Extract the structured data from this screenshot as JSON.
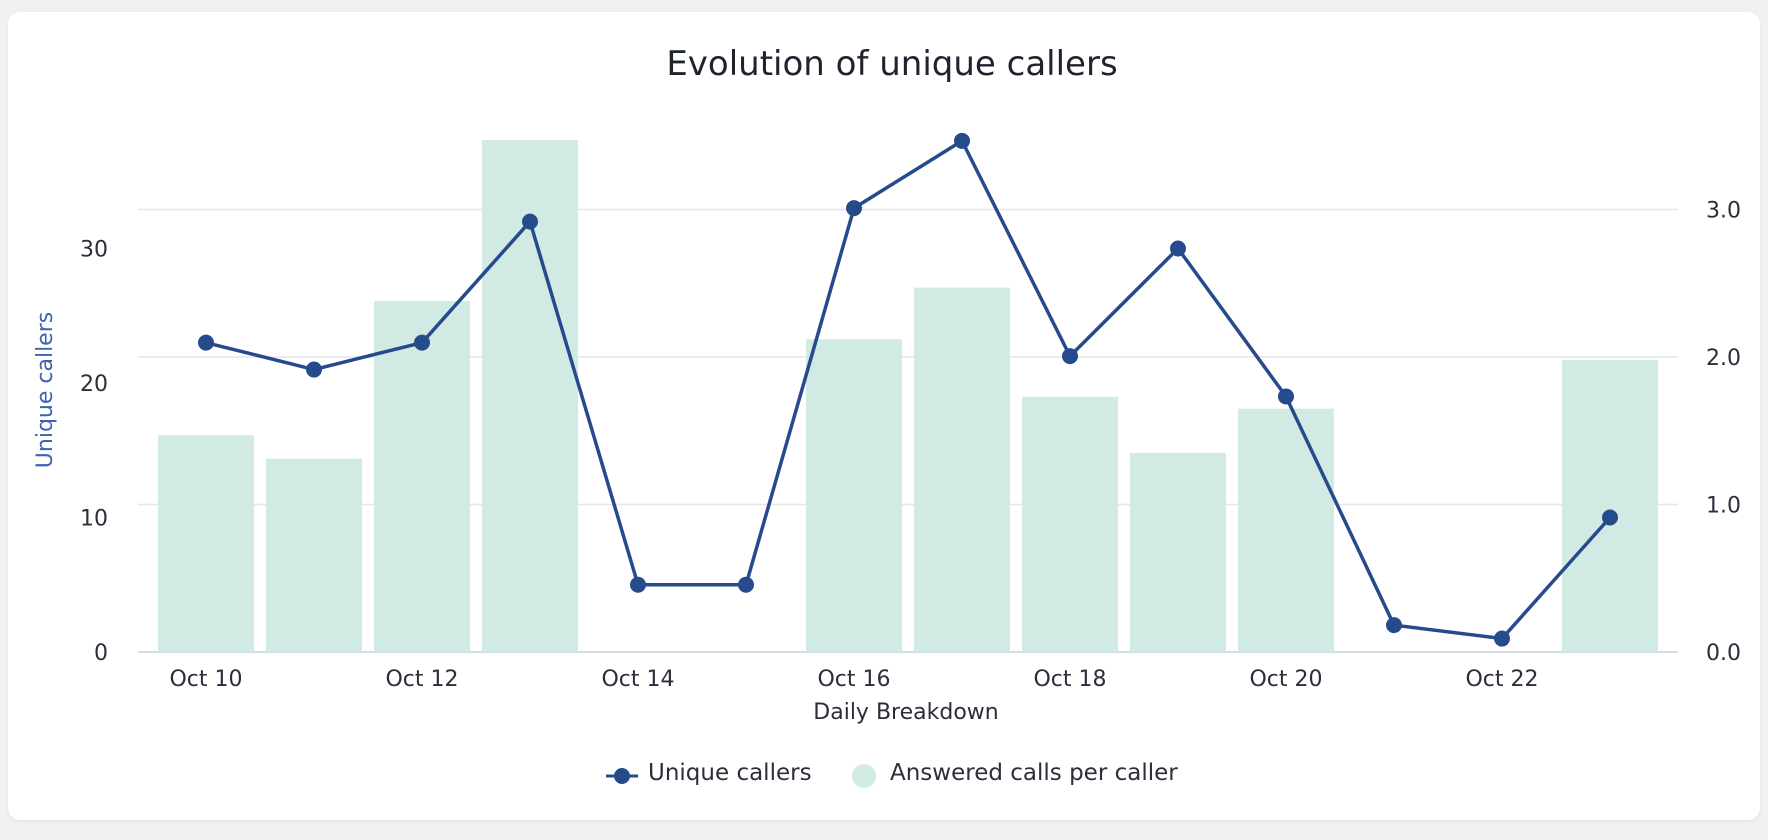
{
  "chart_data": {
    "type": "bar+line",
    "title": "Evolution of unique callers",
    "xlabel": "Daily Breakdown",
    "ylabel_left": "Unique callers",
    "ylabel_right": "",
    "categories": [
      "Oct 10",
      "Oct 11",
      "Oct 12",
      "Oct 13",
      "Oct 14",
      "Oct 15",
      "Oct 16",
      "Oct 17",
      "Oct 18",
      "Oct 19",
      "Oct 20",
      "Oct 21",
      "Oct 22",
      "Oct 23"
    ],
    "x_tick_labels": [
      "Oct 10",
      "Oct 12",
      "Oct 14",
      "Oct 16",
      "Oct 18",
      "Oct 20",
      "Oct 22"
    ],
    "y_left_ticks": [
      "0",
      "10",
      "20",
      "30"
    ],
    "y_right_ticks": [
      "0.0",
      "1.0",
      "2.0",
      "3.0"
    ],
    "ylim_left": [
      0,
      33
    ],
    "ylim_right": [
      0,
      3.0
    ],
    "series": [
      {
        "name": "Unique callers",
        "kind": "line",
        "axis": "left",
        "color": "#264b8d",
        "values": [
          23,
          21,
          23,
          32,
          5,
          5,
          33,
          38,
          22,
          30,
          19,
          2,
          1,
          10
        ]
      },
      {
        "name": "Answered calls per caller",
        "kind": "bar",
        "axis": "right",
        "color": "#d1ebe4",
        "values": [
          1.47,
          1.31,
          2.38,
          3.47,
          0,
          0,
          2.12,
          2.47,
          1.73,
          1.35,
          1.65,
          0,
          0,
          1.98
        ]
      }
    ],
    "grid": true,
    "legend": "bottom-center"
  }
}
